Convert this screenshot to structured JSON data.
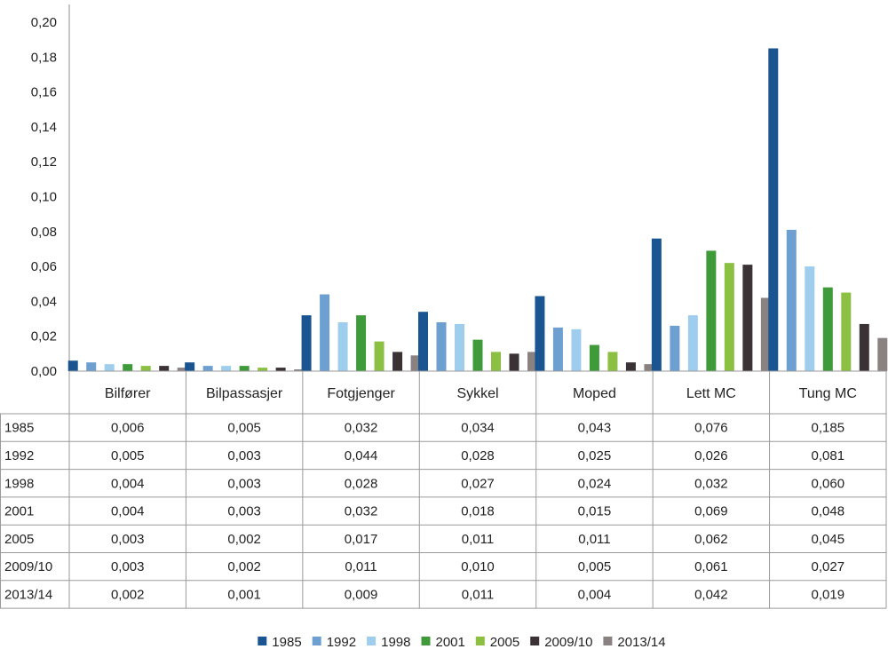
{
  "chart_data": {
    "type": "bar",
    "categories": [
      "Bilfører",
      "Bilpassasjer",
      "Fotgjenger",
      "Sykkel",
      "Moped",
      "Lett MC",
      "Tung MC"
    ],
    "y_ticks": [
      "0,00",
      "0,02",
      "0,04",
      "0,06",
      "0,08",
      "0,10",
      "0,12",
      "0,14",
      "0,16",
      "0,18",
      "0,20"
    ],
    "ylim": [
      0,
      0.2
    ],
    "grid": false,
    "legend": "bottom",
    "series": [
      {
        "name": "1985",
        "color": "#1b5591",
        "values": [
          0.006,
          0.005,
          0.032,
          0.034,
          0.043,
          0.076,
          0.185
        ],
        "labels": [
          "0,006",
          "0,005",
          "0,032",
          "0,034",
          "0,043",
          "0,076",
          "0,185"
        ]
      },
      {
        "name": "1992",
        "color": "#6d9fd1",
        "values": [
          0.005,
          0.003,
          0.044,
          0.028,
          0.025,
          0.026,
          0.081
        ],
        "labels": [
          "0,005",
          "0,003",
          "0,044",
          "0,028",
          "0,025",
          "0,026",
          "0,081"
        ]
      },
      {
        "name": "1998",
        "color": "#9fcdee",
        "values": [
          0.004,
          0.003,
          0.028,
          0.027,
          0.024,
          0.032,
          0.06
        ],
        "labels": [
          "0,004",
          "0,003",
          "0,028",
          "0,027",
          "0,024",
          "0,032",
          "0,060"
        ]
      },
      {
        "name": "2001",
        "color": "#3f9b3a",
        "values": [
          0.004,
          0.003,
          0.032,
          0.018,
          0.015,
          0.069,
          0.048
        ],
        "labels": [
          "0,004",
          "0,003",
          "0,032",
          "0,018",
          "0,015",
          "0,069",
          "0,048"
        ]
      },
      {
        "name": "2005",
        "color": "#8cc043",
        "values": [
          0.003,
          0.002,
          0.017,
          0.011,
          0.011,
          0.062,
          0.045
        ],
        "labels": [
          "0,003",
          "0,002",
          "0,017",
          "0,011",
          "0,011",
          "0,062",
          "0,045"
        ]
      },
      {
        "name": "2009/10",
        "color": "#3a3234",
        "values": [
          0.003,
          0.002,
          0.011,
          0.01,
          0.005,
          0.061,
          0.027
        ],
        "labels": [
          "0,003",
          "0,002",
          "0,011",
          "0,010",
          "0,005",
          "0,061",
          "0,027"
        ]
      },
      {
        "name": "2013/14",
        "color": "#8a8281",
        "values": [
          0.002,
          0.001,
          0.009,
          0.011,
          0.004,
          0.042,
          0.019
        ],
        "labels": [
          "0,002",
          "0,001",
          "0,009",
          "0,011",
          "0,004",
          "0,042",
          "0,019"
        ]
      }
    ]
  }
}
